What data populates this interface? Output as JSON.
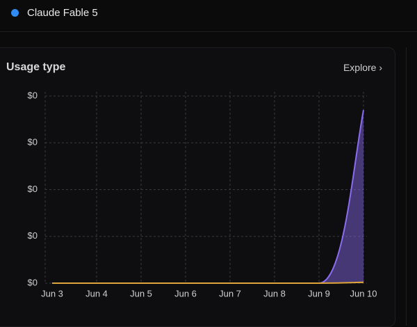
{
  "legend_item": "Claude Fable 5",
  "panel": {
    "title": "Usage type",
    "link": "Explore ›"
  },
  "chart_data": {
    "type": "area",
    "categories": [
      "Jun 3",
      "Jun 4",
      "Jun 5",
      "Jun 6",
      "Jun 7",
      "Jun 8",
      "Jun 9",
      "Jun 10"
    ],
    "series": [
      {
        "color": "#8b6cf0",
        "values": [
          0,
          0,
          0,
          0,
          0,
          0,
          0,
          0.0037
        ]
      },
      {
        "color": "#e0a53a",
        "values": [
          0,
          0,
          0,
          0,
          0,
          0,
          0,
          2e-05
        ]
      }
    ],
    "ylim": [
      0,
      0.004
    ],
    "yticks": [
      {
        "value": 0,
        "label": "$0"
      },
      {
        "value": 0.001,
        "label": "$0"
      },
      {
        "value": 0.002,
        "label": "$0"
      },
      {
        "value": 0.003,
        "label": "$0"
      },
      {
        "value": 0.004,
        "label": "$0"
      }
    ],
    "grid": true
  }
}
